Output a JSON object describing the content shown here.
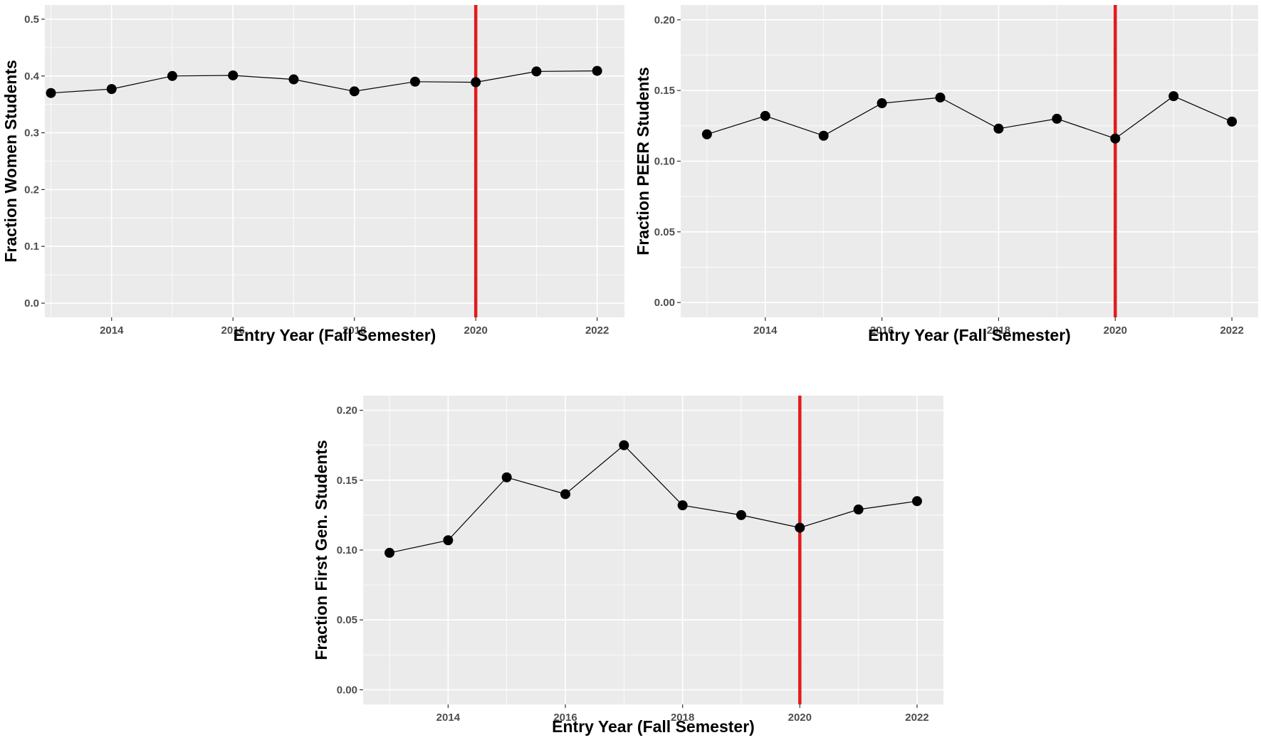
{
  "chart_data": [
    {
      "type": "line",
      "xlabel": "Entry Year (Fall Semester)",
      "ylabel": "Fraction Women Students",
      "xlim": [
        2012.9,
        2022.45
      ],
      "ylim": [
        -0.025,
        0.525
      ],
      "x_ticks": [
        2014,
        2016,
        2018,
        2020,
        2022
      ],
      "y_ticks": [
        0.0,
        0.1,
        0.2,
        0.3,
        0.4,
        0.5
      ],
      "y_tick_labels": [
        "0.0",
        "0.1",
        "0.2",
        "0.3",
        "0.4",
        "0.5"
      ],
      "grid": true,
      "vline": {
        "x": 2020,
        "color": "#e41a1c"
      },
      "series": [
        {
          "x": [
            2013,
            2014,
            2015,
            2016,
            2017,
            2018,
            2019,
            2020,
            2021,
            2022
          ],
          "values": [
            0.37,
            0.377,
            0.4,
            0.401,
            0.394,
            0.373,
            0.39,
            0.389,
            0.408,
            0.409
          ]
        }
      ]
    },
    {
      "type": "line",
      "xlabel": "Entry Year (Fall Semester)",
      "ylabel": "Fraction PEER Students",
      "xlim": [
        2012.55,
        2022.45
      ],
      "ylim": [
        -0.0105,
        0.2105
      ],
      "x_ticks": [
        2014,
        2016,
        2018,
        2020,
        2022
      ],
      "y_ticks": [
        0.0,
        0.05,
        0.1,
        0.15,
        0.2
      ],
      "y_tick_labels": [
        "0.00",
        "0.05",
        "0.10",
        "0.15",
        "0.20"
      ],
      "grid": true,
      "vline": {
        "x": 2020,
        "color": "#e41a1c"
      },
      "series": [
        {
          "x": [
            2013,
            2014,
            2015,
            2016,
            2017,
            2018,
            2019,
            2020,
            2021,
            2022
          ],
          "values": [
            0.119,
            0.132,
            0.118,
            0.141,
            0.145,
            0.123,
            0.13,
            0.116,
            0.146,
            0.128
          ]
        }
      ]
    },
    {
      "type": "line",
      "xlabel": "Entry Year (Fall Semester)",
      "ylabel": "Fraction First Gen. Students",
      "xlim": [
        2012.55,
        2022.45
      ],
      "ylim": [
        -0.0105,
        0.2105
      ],
      "x_ticks": [
        2014,
        2016,
        2018,
        2020,
        2022
      ],
      "y_ticks": [
        0.0,
        0.05,
        0.1,
        0.15,
        0.2
      ],
      "y_tick_labels": [
        "0.00",
        "0.05",
        "0.10",
        "0.15",
        "0.20"
      ],
      "grid": true,
      "vline": {
        "x": 2020,
        "color": "#e41a1c"
      },
      "series": [
        {
          "x": [
            2013,
            2014,
            2015,
            2016,
            2017,
            2018,
            2019,
            2020,
            2021,
            2022
          ],
          "values": [
            0.098,
            0.107,
            0.152,
            0.14,
            0.175,
            0.132,
            0.125,
            0.116,
            0.129,
            0.135
          ]
        }
      ]
    }
  ],
  "colors": {
    "panel_background": "#ebebeb",
    "gridline": "#ffffff",
    "marker": "#000000",
    "line": "#000000",
    "reference_line": "#e41a1c"
  }
}
